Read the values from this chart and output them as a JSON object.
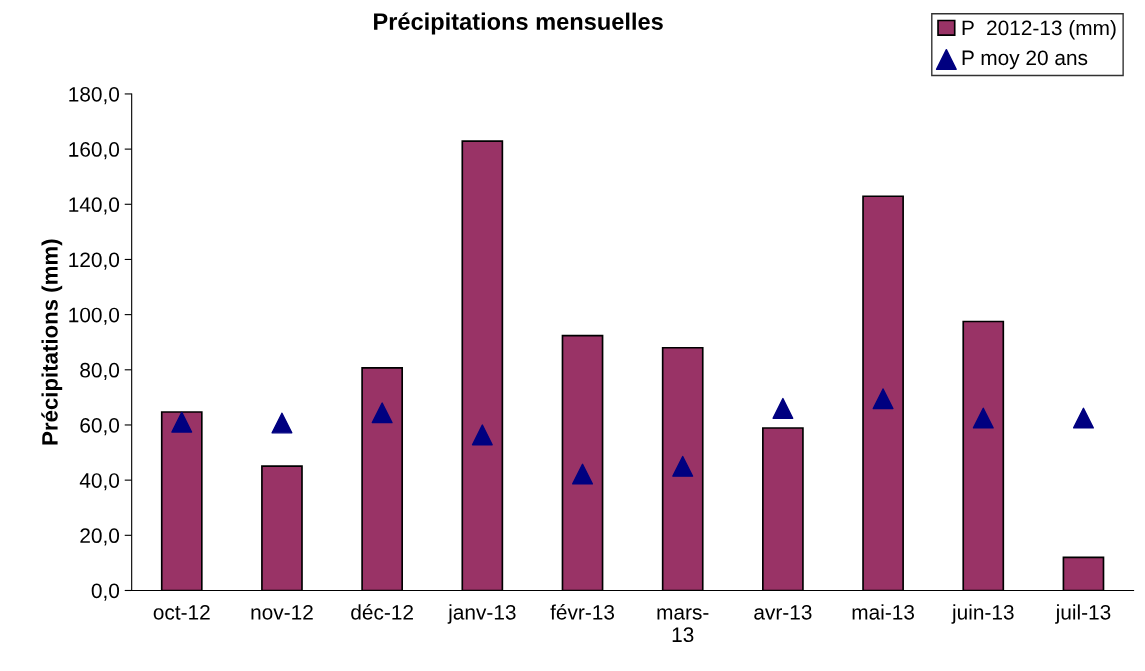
{
  "chart_data": {
    "type": "bar",
    "title": "Précipitations mensuelles",
    "ylabel": "Précipitations (mm)",
    "categories": [
      "oct-12",
      "nov-12",
      "déc-12",
      "janv-13",
      "févr-13",
      "mars-\n13",
      "avr-13",
      "mai-13",
      "juin-13",
      "juil-13"
    ],
    "series": [
      {
        "name": "P  2012-13 (mm)",
        "color": "#993366",
        "values": [
          64.7,
          45.1,
          80.7,
          162.9,
          92.4,
          88.0,
          58.9,
          142.9,
          97.5,
          12.0
        ]
      },
      {
        "name": "P moy 20 ans",
        "color": "#000080",
        "type": "scatter",
        "marker": "triangle",
        "values": [
          61,
          60.7,
          64.4,
          56.4,
          42.2,
          45,
          66,
          69.5,
          62.5,
          62.5
        ]
      }
    ],
    "ylim": [
      0,
      180
    ],
    "yticks": [
      {
        "value": 0,
        "label": "0,0"
      },
      {
        "value": 20,
        "label": "20,0"
      },
      {
        "value": 40,
        "label": "40,0"
      },
      {
        "value": 60,
        "label": "60,0"
      },
      {
        "value": 80,
        "label": "80,0"
      },
      {
        "value": 100,
        "label": "100,0"
      },
      {
        "value": 120,
        "label": "120,0"
      },
      {
        "value": 140,
        "label": "140,0"
      },
      {
        "value": 160,
        "label": "160,0"
      },
      {
        "value": 180,
        "label": "180,0"
      }
    ],
    "grid": false,
    "legend": "top right"
  }
}
